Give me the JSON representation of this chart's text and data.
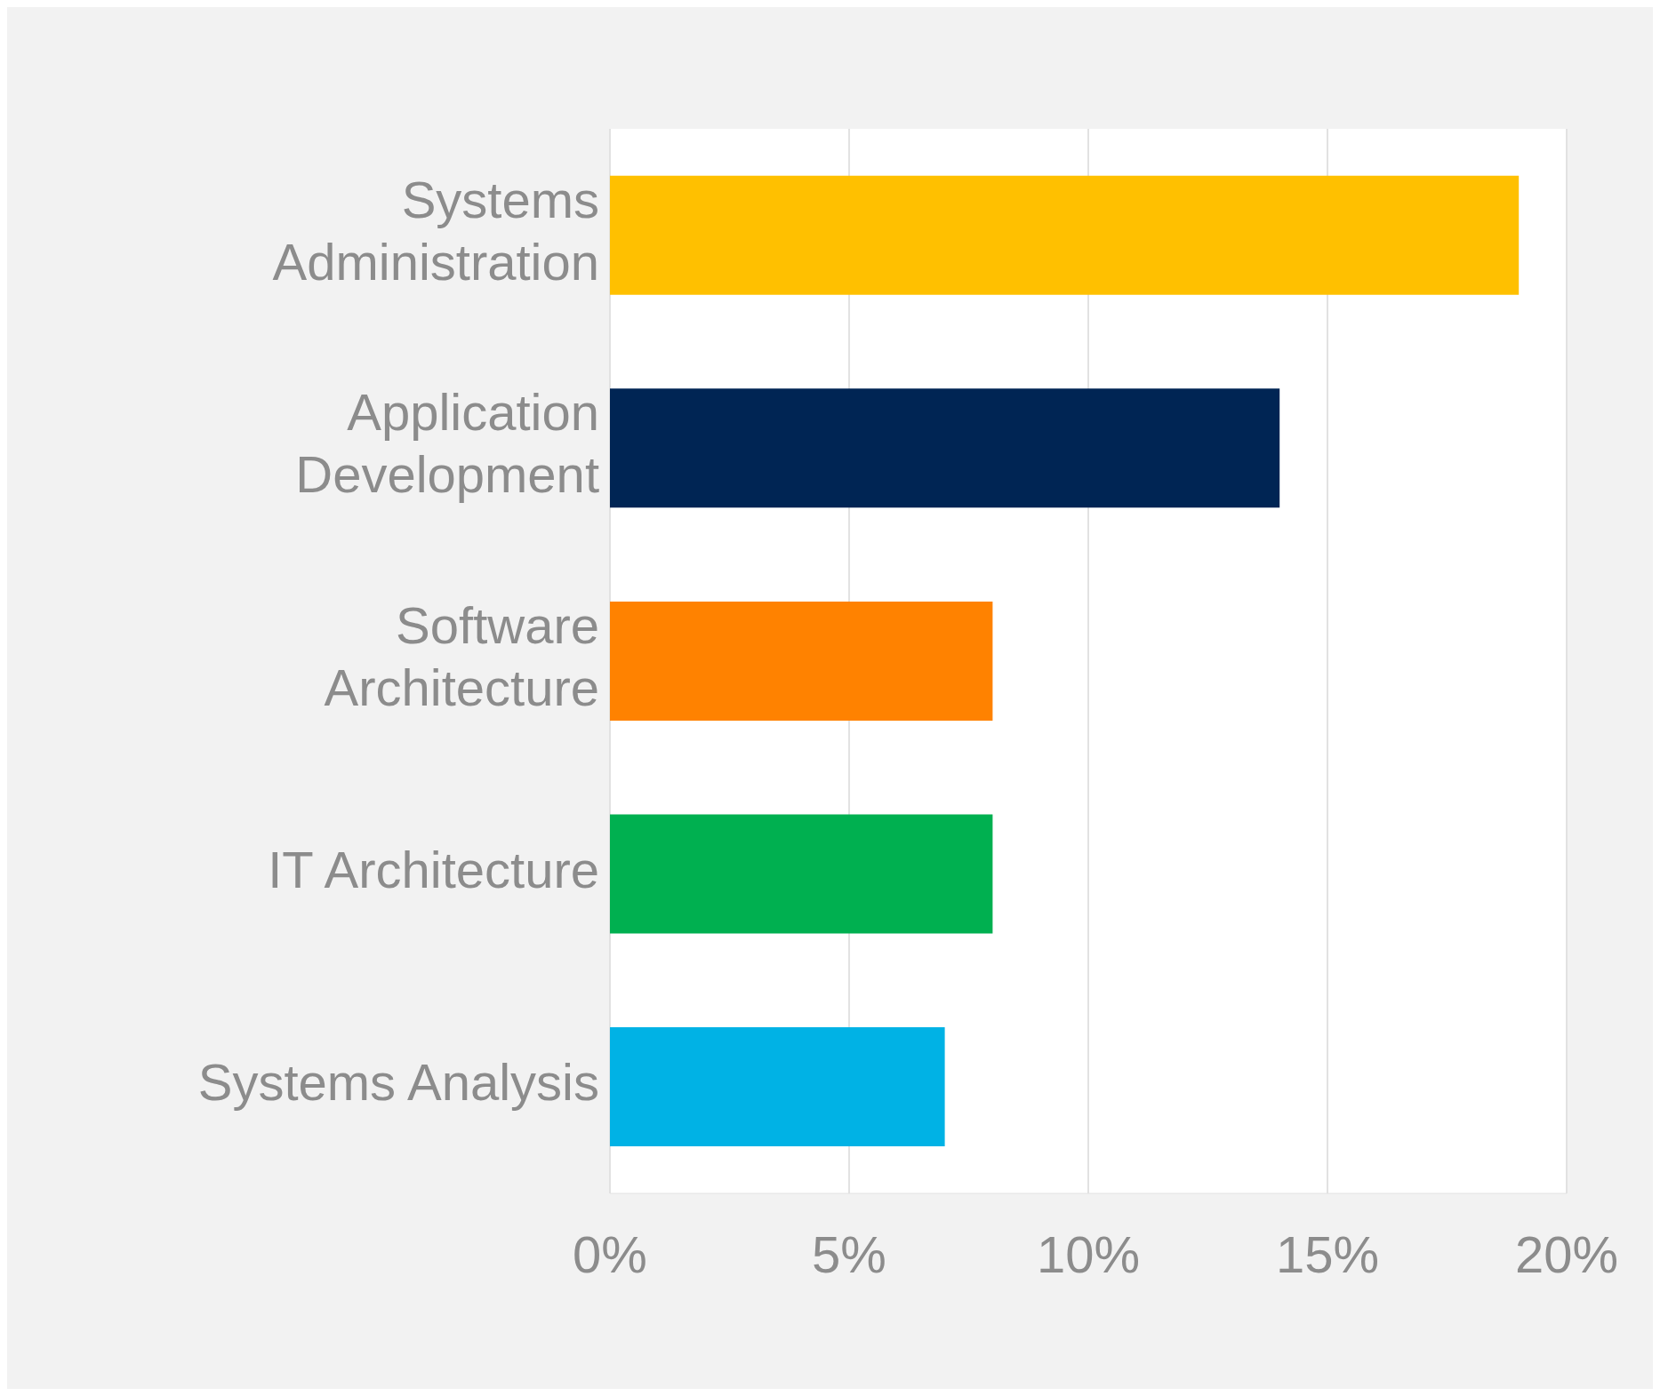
{
  "chart_data": {
    "type": "bar",
    "orientation": "horizontal",
    "categories": [
      "Systems Administration",
      "Application Development",
      "Software Architecture",
      "IT Architecture",
      "Systems Analysis"
    ],
    "values": [
      19,
      14,
      8,
      8,
      7
    ],
    "colors": [
      "#ffc000",
      "#002554",
      "#ff8200",
      "#00b050",
      "#00b2e5"
    ],
    "xlim": [
      0,
      20
    ],
    "xticks": [
      {
        "value": 0,
        "label": "0%"
      },
      {
        "value": 5,
        "label": "5%"
      },
      {
        "value": 10,
        "label": "10%"
      },
      {
        "value": 15,
        "label": "15%"
      },
      {
        "value": 20,
        "label": "20%"
      }
    ],
    "grid": "x"
  }
}
